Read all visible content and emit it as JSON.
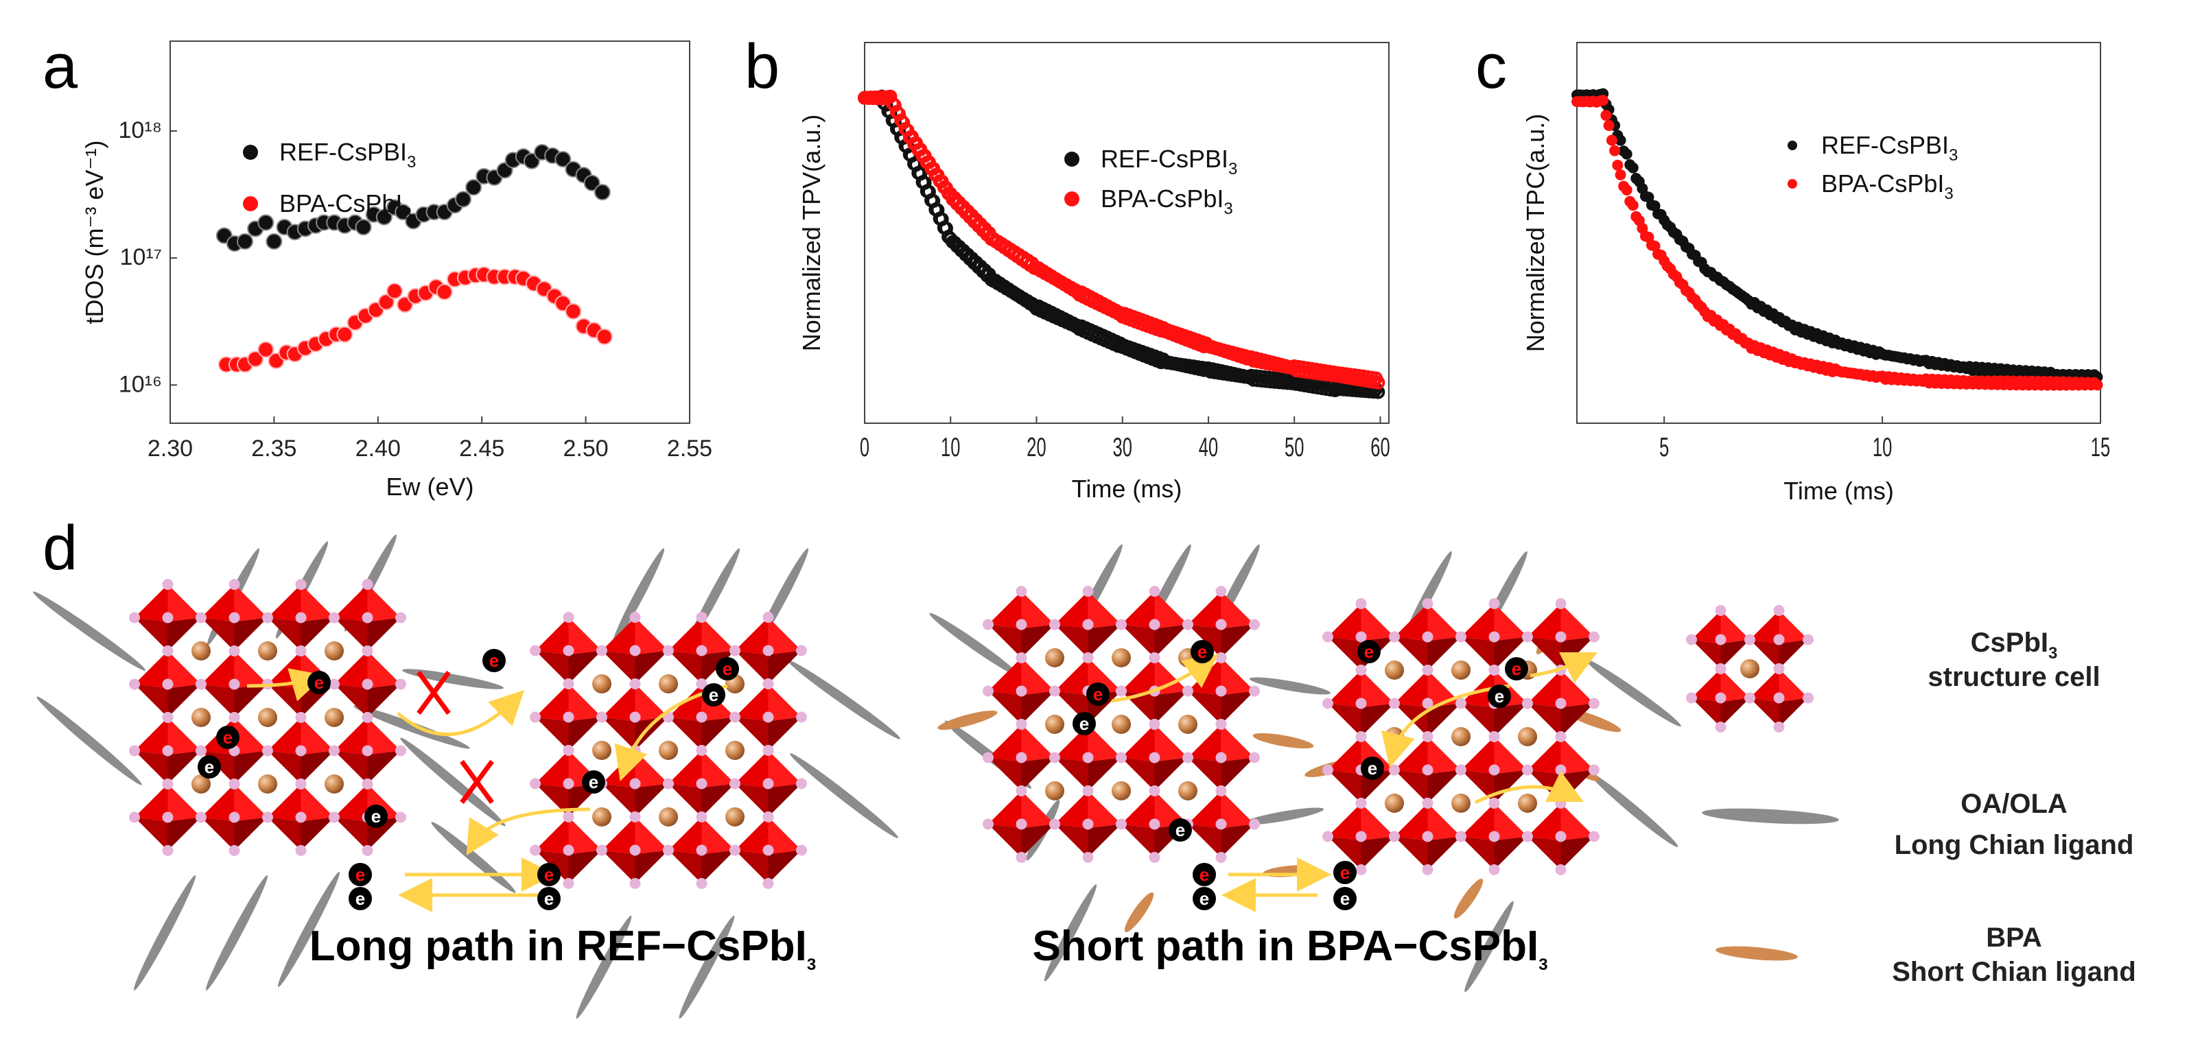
{
  "panel_labels": {
    "a": "a",
    "b": "b",
    "c": "c",
    "d": "d"
  },
  "colors": {
    "ref": "#111111",
    "bpa": "#ff1010",
    "octa_light": "#e80000",
    "octa_dark": "#8a0000",
    "ligand_long": "#8c8c8c",
    "ligand_short": "#d08a50",
    "arrow": "#ffd24a",
    "cross": "#ff0000",
    "halide": "#e6b3d9"
  },
  "chart_data": [
    {
      "id": "a",
      "type": "scatter",
      "xlabel": "Ew (eV)",
      "ylabel": "tDOS (m⁻³ eV⁻¹)",
      "xlim": [
        2.3,
        2.55
      ],
      "ylim": [
        5000000000000000.0,
        5.1e+18
      ],
      "yscale": "log",
      "xticks": [
        "2.30",
        "2.35",
        "2.40",
        "2.45",
        "2.50",
        "2.55"
      ],
      "xtick_values": [
        2.3,
        2.35,
        2.4,
        2.45,
        2.5,
        2.55
      ],
      "yticks": [
        "10¹⁶",
        "10¹⁷",
        "10¹⁸"
      ],
      "ytick_values": [
        1e+16,
        1e+17,
        1e+18
      ],
      "legend_position": "top-left",
      "series": [
        {
          "name": "REF-CsPBI",
          "sub": "3",
          "color_key": "ref",
          "x": [
            2.326,
            2.331,
            2.336,
            2.341,
            2.346,
            2.35,
            2.355,
            2.36,
            2.365,
            2.37,
            2.374,
            2.379,
            2.384,
            2.389,
            2.393,
            2.398,
            2.403,
            2.408,
            2.412,
            2.417,
            2.422,
            2.427,
            2.432,
            2.437,
            2.441,
            2.446,
            2.451,
            2.456,
            2.461,
            2.465,
            2.47,
            2.474,
            2.479,
            2.484,
            2.489,
            2.494,
            2.499,
            2.503,
            2.508
          ],
          "y": [
            1.5e+17,
            1.3e+17,
            1.35e+17,
            1.7e+17,
            1.9e+17,
            1.35e+17,
            1.75e+17,
            1.6e+17,
            1.7e+17,
            1.8e+17,
            1.9e+17,
            1.9e+17,
            1.8e+17,
            1.9e+17,
            1.75e+17,
            2.2e+17,
            2.1e+17,
            2.5e+17,
            2.3e+17,
            1.95e+17,
            2.2e+17,
            2.3e+17,
            2.3e+17,
            2.6e+17,
            2.9e+17,
            3.6e+17,
            4.4e+17,
            4.3e+17,
            4.9e+17,
            5.9e+17,
            6.3e+17,
            5.8e+17,
            6.8e+17,
            6.4e+17,
            6e+17,
            5e+17,
            4.5e+17,
            3.9e+17,
            3.3e+17
          ]
        },
        {
          "name": "BPA-CsPbI",
          "sub": "3",
          "color_key": "bpa",
          "x": [
            2.327,
            2.332,
            2.336,
            2.341,
            2.346,
            2.351,
            2.356,
            2.36,
            2.365,
            2.37,
            2.375,
            2.38,
            2.384,
            2.389,
            2.394,
            2.399,
            2.404,
            2.408,
            2.413,
            2.418,
            2.423,
            2.428,
            2.432,
            2.437,
            2.442,
            2.447,
            2.451,
            2.456,
            2.461,
            2.466,
            2.47,
            2.475,
            2.48,
            2.485,
            2.489,
            2.494,
            2.499,
            2.504,
            2.509
          ],
          "y": [
            1.45e+16,
            1.45e+16,
            1.45e+16,
            1.6e+16,
            1.9e+16,
            1.55e+16,
            1.8e+16,
            1.75e+16,
            1.95e+16,
            2.1e+16,
            2.3e+16,
            2.5e+16,
            2.5e+16,
            3.1e+16,
            3.5e+16,
            3.9e+16,
            4.5e+16,
            5.5e+16,
            4.3e+16,
            5e+16,
            5.3e+16,
            5.9e+16,
            5.4e+16,
            6.8e+16,
            7e+16,
            7.3e+16,
            7.4e+16,
            7.1e+16,
            7.1e+16,
            7.1e+16,
            6.9e+16,
            6.3e+16,
            5.7e+16,
            5e+16,
            4.4e+16,
            3.8e+16,
            2.9e+16,
            2.7e+16,
            2.4e+16
          ]
        }
      ]
    },
    {
      "id": "b",
      "type": "scatter",
      "xlabel": "Time (ms)",
      "ylabel": "Normalized TPV(a.u.)",
      "xlim": [
        0,
        61
      ],
      "ylim": [
        0,
        1.17
      ],
      "xticks": [
        "0",
        "10",
        "20",
        "30",
        "40",
        "50",
        "60"
      ],
      "xtick_values": [
        0,
        10,
        20,
        30,
        40,
        50,
        60
      ],
      "legend_position": "center-right",
      "series": [
        {
          "name": "REF-CsPBI",
          "sub": "3",
          "color_key": "ref",
          "x": [
            0,
            2,
            3,
            5,
            10,
            15,
            20,
            25,
            30,
            35,
            40,
            45,
            50,
            55,
            60
          ],
          "y": [
            1.0,
            1.0,
            0.95,
            0.845,
            0.565,
            0.44,
            0.357,
            0.295,
            0.237,
            0.188,
            0.164,
            0.14,
            0.126,
            0.106,
            0.1
          ]
        },
        {
          "name": "BPA-CsPbI",
          "sub": "3",
          "color_key": "bpa",
          "x": [
            0,
            3,
            5,
            10,
            15,
            20,
            25,
            30,
            35,
            40,
            45,
            50,
            55,
            60
          ],
          "y": [
            1.0,
            1.0,
            0.894,
            0.7,
            0.565,
            0.478,
            0.4,
            0.333,
            0.285,
            0.237,
            0.198,
            0.169,
            0.15,
            0.13
          ]
        }
      ]
    },
    {
      "id": "c",
      "type": "scatter",
      "xlabel": "Time (ms)",
      "ylabel": "Normalized TPC(a.u.)",
      "xlim": [
        3,
        15
      ],
      "ylim": [
        0,
        1.16
      ],
      "xticks": [
        "5",
        "10",
        "15"
      ],
      "xtick_values": [
        5,
        10,
        15
      ],
      "legend_position": "top-right",
      "series": [
        {
          "name": "REF-CsPBI",
          "sub": "3",
          "color_key": "ref",
          "x": [
            3,
            3.6,
            4.0,
            4.5,
            5,
            6,
            7,
            8,
            9,
            10,
            11,
            12,
            13,
            14,
            15
          ],
          "y": [
            1.0,
            1.0,
            0.856,
            0.71,
            0.617,
            0.464,
            0.368,
            0.29,
            0.244,
            0.21,
            0.187,
            0.167,
            0.158,
            0.148,
            0.144
          ]
        },
        {
          "name": "BPA-CsPbI",
          "sub": "3",
          "color_key": "bpa",
          "x": [
            3,
            3.6,
            4.0,
            4.5,
            5,
            5.5,
            6,
            7,
            8,
            9,
            10,
            11,
            12,
            15
          ],
          "y": [
            0.98,
            0.98,
            0.751,
            0.589,
            0.493,
            0.407,
            0.33,
            0.234,
            0.187,
            0.158,
            0.139,
            0.129,
            0.124,
            0.12
          ]
        }
      ]
    }
  ],
  "diagram": {
    "electron_label": "e",
    "left_title": "Long path in REF−CsPbI",
    "left_title_sub": "3",
    "right_title": "Short path in BPA−CsPbI",
    "right_title_sub": "3",
    "legend": [
      {
        "line1": "CsPbI",
        "line1_sub": "3",
        "line2": "structure cell"
      },
      {
        "line1": "OA/OLA",
        "line2": "Long Chian ligand"
      },
      {
        "line1": "BPA",
        "line2": "Short Chian ligand"
      }
    ]
  }
}
